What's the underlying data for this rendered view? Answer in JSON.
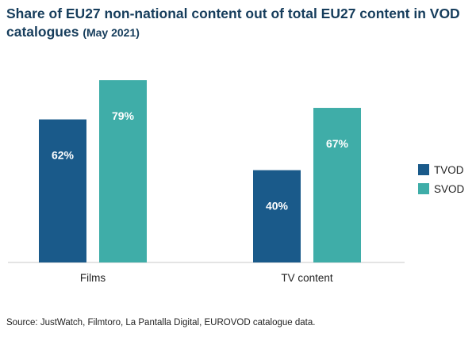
{
  "chart_data": {
    "type": "bar",
    "title": "Share of EU27 non-national content out of total EU27 content in VOD catalogues",
    "subtitle": "(May 2021)",
    "categories": [
      "Films",
      "TV content"
    ],
    "series": [
      {
        "name": "TVOD",
        "color": "#1a5a8a",
        "values": [
          62,
          40
        ],
        "labels": [
          "62%",
          "40%"
        ]
      },
      {
        "name": "SVOD",
        "color": "#3fada8",
        "values": [
          79,
          67
        ],
        "labels": [
          "79%",
          "67%"
        ]
      }
    ],
    "ylim": [
      0,
      100
    ],
    "xlabel": "",
    "ylabel": "",
    "grid": false,
    "legend_position": "right"
  },
  "title_main": "Share of EU27 non-national content out of total EU27 content in VOD catalogues",
  "title_sub": "(May 2021)",
  "source": "Source: JustWatch, Filmtoro, La Pantalla Digital, EUROVOD catalogue data."
}
